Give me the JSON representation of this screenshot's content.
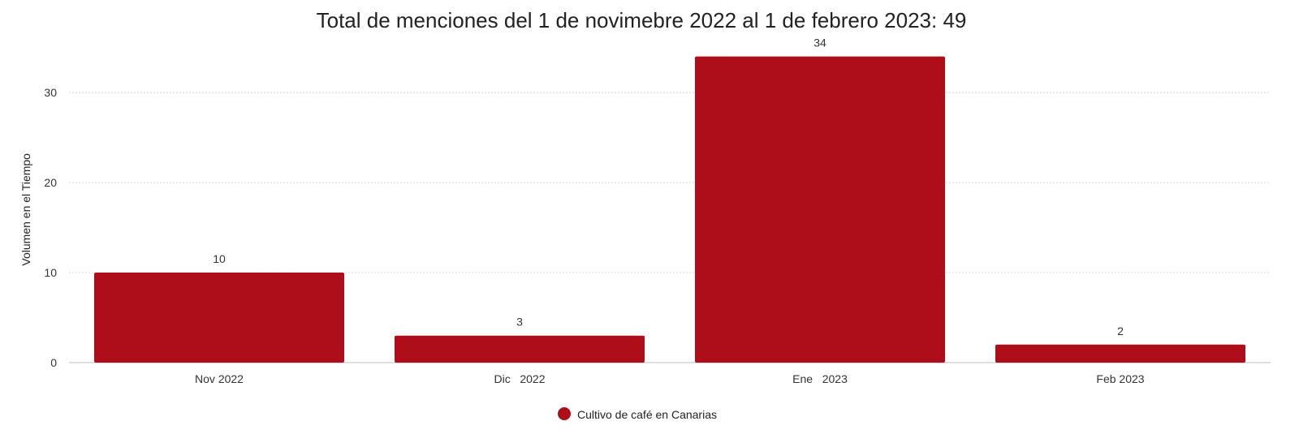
{
  "chart_data": {
    "type": "bar",
    "title": "Total de menciones del 1 de novimebre 2022 al 1 de febrero 2023: 49",
    "xlabel": "",
    "ylabel": "Volumen en el Tiempo",
    "categories": [
      "Nov 2022",
      "Dic   2022",
      "Ene   2023",
      "Feb 2023"
    ],
    "series": [
      {
        "name": "Cultivo de café en Canarias",
        "values": [
          10,
          3,
          34,
          2
        ],
        "color": "#ad0e1a"
      }
    ],
    "ylim": [
      0,
      35
    ],
    "yticks": [
      0,
      10,
      20,
      30
    ],
    "data_labels": true,
    "grid": true,
    "legend_position": "bottom-center"
  }
}
